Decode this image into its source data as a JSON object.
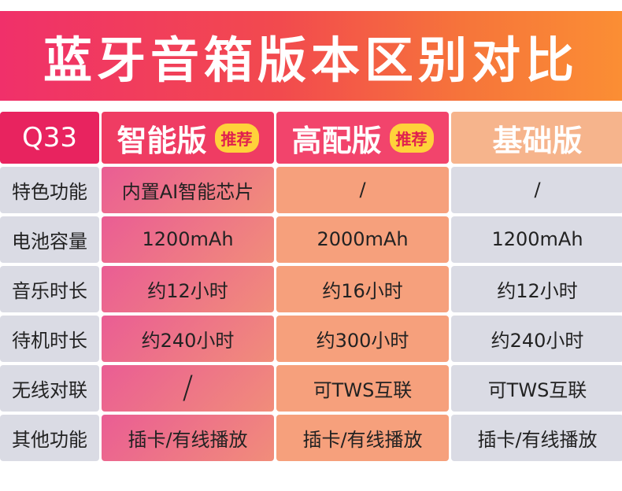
{
  "title": "蓝牙音箱版本区别对比",
  "table": {
    "corner": "Q33",
    "columns": [
      {
        "name": "智能版",
        "badge": "推荐"
      },
      {
        "name": "高配版",
        "badge": "推荐"
      },
      {
        "name": "基础版",
        "badge": ""
      }
    ],
    "rows": [
      {
        "label": "特色功能",
        "values": [
          "内置AI智能芯片",
          "/",
          "/"
        ]
      },
      {
        "label": "电池容量",
        "values": [
          "1200mAh",
          "2000mAh",
          "1200mAh"
        ]
      },
      {
        "label": "音乐时长",
        "values": [
          "约12小时",
          "约16小时",
          "约12小时"
        ]
      },
      {
        "label": "待机时长",
        "values": [
          "约240小时",
          "约300小时",
          "约240小时"
        ]
      },
      {
        "label": "无线对联",
        "values": [
          "/",
          "可TWS互联",
          "可TWS互联"
        ]
      },
      {
        "label": "其他功能",
        "values": [
          "插卡/有线播放",
          "插卡/有线播放",
          "插卡/有线播放"
        ]
      }
    ]
  },
  "colors": {
    "banner_start": "#f0306a",
    "banner_end": "#fb8e34",
    "smart": "#ef3c63",
    "high": "#f2446c",
    "basic": "#f6b48c",
    "badge": "#ffd23a",
    "label_bg": "#dadbe4"
  }
}
